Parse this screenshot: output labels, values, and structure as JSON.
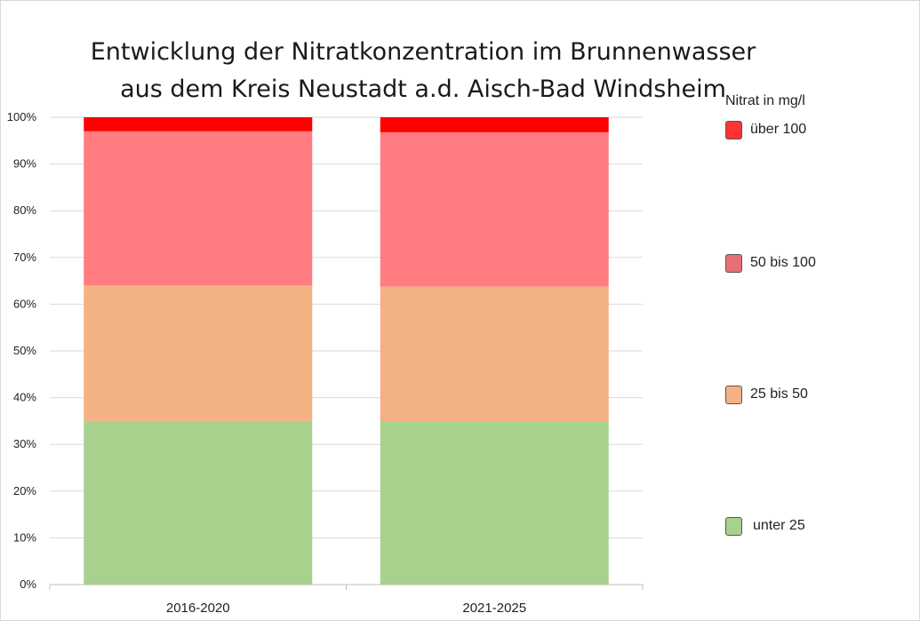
{
  "chart_data": {
    "type": "bar",
    "stacked": true,
    "title": [
      "Entwicklung der Nitratkonzentration im Brunnenwasser",
      "aus dem Kreis Neustadt a.d. Aisch-Bad Windsheim"
    ],
    "categories": [
      "2016-2020",
      "2021-2025"
    ],
    "series": [
      {
        "name": "unter 25",
        "color": "#a9d18e",
        "values": [
          35,
          34.8
        ]
      },
      {
        "name": "25 bis 50",
        "color": "#f4b183",
        "values": [
          29,
          29
        ]
      },
      {
        "name": "50 bis 100",
        "color": "#ff7c80",
        "values": [
          33,
          33
        ]
      },
      {
        "name": "über 100",
        "color": "#ff0000",
        "values": [
          3,
          3.2
        ]
      }
    ],
    "ylim": [
      0,
      100
    ],
    "yunit": "%",
    "yticks": [
      "0%",
      "10%",
      "20%",
      "30%",
      "40%",
      "50%",
      "60%",
      "70%",
      "80%",
      "90%",
      "100%"
    ],
    "grid": true,
    "legend_title": "Nitrat in mg/l",
    "legend_position": "right"
  }
}
